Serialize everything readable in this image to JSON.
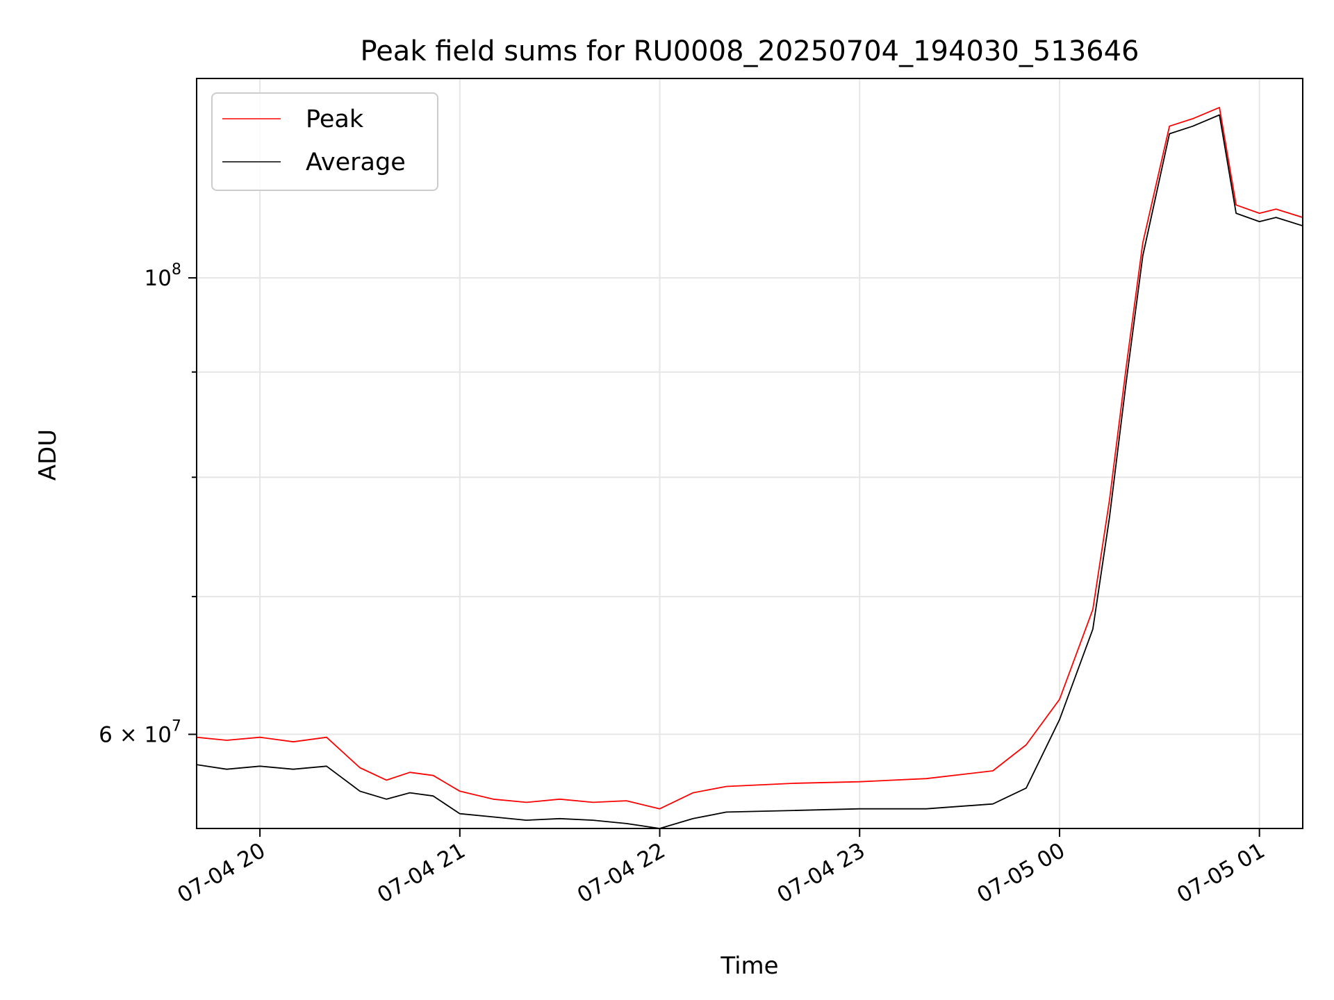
{
  "chart_data": {
    "type": "line",
    "title": "Peak field sums for RU0008_20250704_194030_513646",
    "xlabel": "Time",
    "ylabel": "ADU",
    "yscale": "log",
    "grid": true,
    "legend_placement": "top-left",
    "xlim": [
      "07-04 19:41",
      "07-05 01:13"
    ],
    "ylim": [
      54000000,
      125000000
    ],
    "x_ticks": [
      {
        "at": "07-04 20:00",
        "label": "07-04 20"
      },
      {
        "at": "07-04 21:00",
        "label": "07-04 21"
      },
      {
        "at": "07-04 22:00",
        "label": "07-04 22"
      },
      {
        "at": "07-04 23:00",
        "label": "07-04 23"
      },
      {
        "at": "07-05 00:00",
        "label": "07-05 00"
      },
      {
        "at": "07-05 01:00",
        "label": "07-05 01"
      }
    ],
    "y_ticks_major": [
      {
        "value": 60000000,
        "label_mantissa": "6 × 10",
        "label_exp": "7"
      },
      {
        "value": 100000000,
        "label_mantissa": "10",
        "label_exp": "8"
      }
    ],
    "y_ticks_minor": [
      70000000,
      80000000,
      90000000
    ],
    "series": [
      {
        "name": "Peak",
        "color": "#ff0000",
        "x": [
          "07-04 19:41",
          "07-04 19:50",
          "07-04 20:00",
          "07-04 20:10",
          "07-04 20:20",
          "07-04 20:30",
          "07-04 20:38",
          "07-04 20:45",
          "07-04 20:52",
          "07-04 21:00",
          "07-04 21:10",
          "07-04 21:20",
          "07-04 21:30",
          "07-04 21:40",
          "07-04 21:50",
          "07-04 22:00",
          "07-04 22:10",
          "07-04 22:20",
          "07-04 22:40",
          "07-04 23:00",
          "07-04 23:20",
          "07-04 23:40",
          "07-04 23:50",
          "07-05 00:00",
          "07-05 00:10",
          "07-05 00:15",
          "07-05 00:20",
          "07-05 00:25",
          "07-05 00:33",
          "07-05 00:40",
          "07-05 00:48",
          "07-05 00:53",
          "07-05 01:00",
          "07-05 01:05",
          "07-05 01:13"
        ],
        "values": [
          59800000,
          59600000,
          59800000,
          59500000,
          59800000,
          57800000,
          57000000,
          57500000,
          57300000,
          56300000,
          55800000,
          55600000,
          55800000,
          55600000,
          55700000,
          55200000,
          56200000,
          56600000,
          56800000,
          56900000,
          57100000,
          57600000,
          59300000,
          62400000,
          69000000,
          78000000,
          90500000,
          104000000,
          118500000,
          119500000,
          121000000,
          108500000,
          107500000,
          108000000,
          107000000
        ]
      },
      {
        "name": "Average",
        "color": "#000000",
        "x": [
          "07-04 19:41",
          "07-04 19:50",
          "07-04 20:00",
          "07-04 20:10",
          "07-04 20:20",
          "07-04 20:30",
          "07-04 20:38",
          "07-04 20:45",
          "07-04 20:52",
          "07-04 21:00",
          "07-04 21:10",
          "07-04 21:20",
          "07-04 21:30",
          "07-04 21:40",
          "07-04 21:50",
          "07-04 22:00",
          "07-04 22:10",
          "07-04 22:20",
          "07-04 22:40",
          "07-04 23:00",
          "07-04 23:20",
          "07-04 23:40",
          "07-04 23:50",
          "07-05 00:00",
          "07-05 00:10",
          "07-05 00:15",
          "07-05 00:20",
          "07-05 00:25",
          "07-05 00:33",
          "07-05 00:40",
          "07-05 00:48",
          "07-05 00:53",
          "07-05 01:00",
          "07-05 01:05",
          "07-05 01:13"
        ],
        "values": [
          58000000,
          57700000,
          57900000,
          57700000,
          57900000,
          56300000,
          55800000,
          56200000,
          56000000,
          54900000,
          54700000,
          54500000,
          54600000,
          54500000,
          54300000,
          54000000,
          54600000,
          55000000,
          55100000,
          55200000,
          55200000,
          55500000,
          56500000,
          61000000,
          67500000,
          76500000,
          89000000,
          102500000,
          117500000,
          118500000,
          120000000,
          107500000,
          106500000,
          107000000,
          106000000
        ]
      }
    ]
  }
}
